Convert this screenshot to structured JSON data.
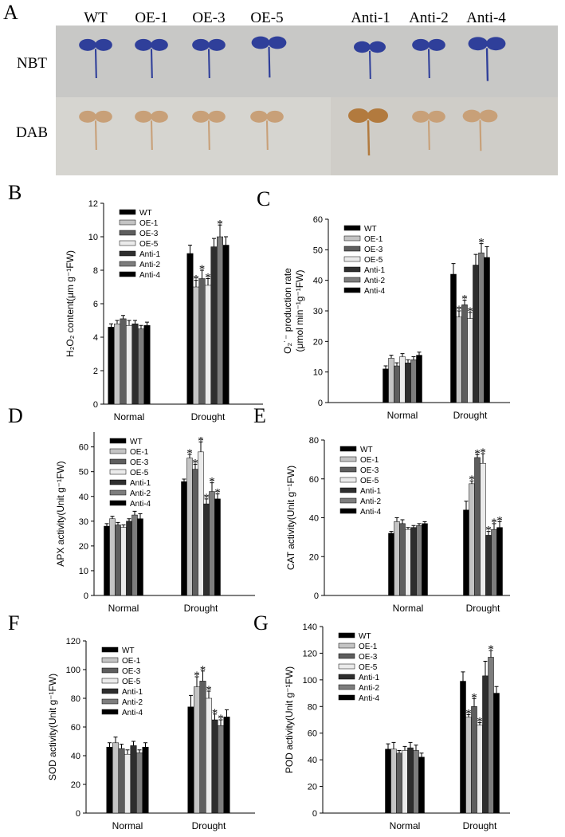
{
  "panel_a": {
    "letter": "A",
    "columns": [
      "WT",
      "OE-1",
      "OE-3",
      "OE-5",
      "Anti-1",
      "Anti-2",
      "Anti-4"
    ],
    "rows": [
      "NBT",
      "DAB"
    ]
  },
  "chart_data": [
    {
      "type": "bar",
      "letter": "B",
      "y_label": [
        "H₂O₂ content(μm g⁻¹FW)"
      ],
      "categories": [
        "Normal",
        "Drought"
      ],
      "ylim": [
        0,
        12
      ],
      "yticks": [
        0,
        2,
        4,
        6,
        8,
        10,
        12
      ],
      "series": [
        {
          "name": "WT",
          "color": "#000000",
          "values": [
            4.6,
            9.0
          ],
          "errors": [
            0.2,
            0.5
          ],
          "sig": [
            null,
            null
          ]
        },
        {
          "name": "OE-1",
          "color": "#c4c4c4",
          "values": [
            4.8,
            7.0
          ],
          "errors": [
            0.2,
            0.4
          ],
          "sig": [
            null,
            "*"
          ]
        },
        {
          "name": "OE-3",
          "color": "#5e5e5e",
          "values": [
            5.1,
            7.5
          ],
          "errors": [
            0.2,
            0.5
          ],
          "sig": [
            null,
            "*"
          ]
        },
        {
          "name": "OE-5",
          "color": "#ebebeb",
          "values": [
            4.7,
            7.1
          ],
          "errors": [
            0.3,
            0.4
          ],
          "sig": [
            null,
            "*"
          ]
        },
        {
          "name": "Anti-1",
          "color": "#2e2e2e",
          "values": [
            4.8,
            9.4
          ],
          "errors": [
            0.2,
            0.5
          ],
          "sig": [
            null,
            null
          ]
        },
        {
          "name": "Anti-2",
          "color": "#7d7d7d",
          "values": [
            4.5,
            10.0
          ],
          "errors": [
            0.2,
            0.7
          ],
          "sig": [
            null,
            "*"
          ]
        },
        {
          "name": "Anti-4",
          "color": "#000000",
          "values": [
            4.7,
            9.5
          ],
          "errors": [
            0.2,
            0.5
          ],
          "sig": [
            null,
            null
          ]
        }
      ]
    },
    {
      "type": "bar",
      "letter": "C",
      "y_label": [
        "O₂˙⁻ production rate",
        "(μmol min⁻¹g⁻¹FW)"
      ],
      "categories": [
        "Normal",
        "Drought"
      ],
      "ylim": [
        0,
        60
      ],
      "yticks": [
        0,
        10,
        20,
        30,
        40,
        50,
        60
      ],
      "series": [
        {
          "name": "WT",
          "color": "#000000",
          "values": [
            11,
            42
          ],
          "errors": [
            1,
            3.5
          ],
          "sig": [
            null,
            null
          ]
        },
        {
          "name": "OE-1",
          "color": "#c4c4c4",
          "values": [
            14.5,
            28
          ],
          "errors": [
            1,
            2
          ],
          "sig": [
            null,
            "*"
          ]
        },
        {
          "name": "OE-3",
          "color": "#5e5e5e",
          "values": [
            12,
            32
          ],
          "errors": [
            1,
            1.5
          ],
          "sig": [
            null,
            "*"
          ]
        },
        {
          "name": "OE-5",
          "color": "#ebebeb",
          "values": [
            15,
            27.5
          ],
          "errors": [
            1,
            2
          ],
          "sig": [
            null,
            "*"
          ]
        },
        {
          "name": "Anti-1",
          "color": "#2e2e2e",
          "values": [
            13,
            45
          ],
          "errors": [
            1,
            3.5
          ],
          "sig": [
            null,
            null
          ]
        },
        {
          "name": "Anti-2",
          "color": "#7d7d7d",
          "values": [
            14,
            49
          ],
          "errors": [
            1,
            3
          ],
          "sig": [
            null,
            "*"
          ]
        },
        {
          "name": "Anti-4",
          "color": "#000000",
          "values": [
            15.5,
            47.5
          ],
          "errors": [
            1,
            3.5
          ],
          "sig": [
            null,
            null
          ]
        }
      ]
    },
    {
      "type": "bar",
      "letter": "D",
      "y_label": [
        "APX activity(Unit g⁻¹FW)"
      ],
      "categories": [
        "Normal",
        "Drought"
      ],
      "ylim": [
        0,
        66
      ],
      "yticks": [
        0,
        10,
        20,
        30,
        40,
        50,
        60
      ],
      "series": [
        {
          "name": "WT",
          "color": "#000000",
          "values": [
            28,
            46
          ],
          "errors": [
            1,
            1
          ],
          "sig": [
            null,
            null
          ]
        },
        {
          "name": "OE-1",
          "color": "#c4c4c4",
          "values": [
            31,
            55.5
          ],
          "errors": [
            1,
            1.5
          ],
          "sig": [
            null,
            "*"
          ]
        },
        {
          "name": "OE-3",
          "color": "#5e5e5e",
          "values": [
            28.5,
            51
          ],
          "errors": [
            1,
            2
          ],
          "sig": [
            null,
            "*"
          ]
        },
        {
          "name": "OE-5",
          "color": "#ebebeb",
          "values": [
            27.5,
            58
          ],
          "errors": [
            1,
            4
          ],
          "sig": [
            null,
            "*"
          ]
        },
        {
          "name": "Anti-1",
          "color": "#2e2e2e",
          "values": [
            30,
            37
          ],
          "errors": [
            1,
            2
          ],
          "sig": [
            null,
            "*"
          ]
        },
        {
          "name": "Anti-2",
          "color": "#7d7d7d",
          "values": [
            32.5,
            42
          ],
          "errors": [
            1.5,
            3.5
          ],
          "sig": [
            null,
            "*"
          ]
        },
        {
          "name": "Anti-4",
          "color": "#000000",
          "values": [
            31,
            39
          ],
          "errors": [
            2,
            2
          ],
          "sig": [
            null,
            "*"
          ]
        }
      ]
    },
    {
      "type": "bar",
      "letter": "E",
      "y_label": [
        "CAT activity(Unit g⁻¹FW)"
      ],
      "categories": [
        "Normal",
        "Drought"
      ],
      "ylim": [
        0,
        80
      ],
      "yticks": [
        0,
        20,
        40,
        60,
        80
      ],
      "series": [
        {
          "name": "WT",
          "color": "#000000",
          "values": [
            32,
            44
          ],
          "errors": [
            1,
            4.5
          ],
          "sig": [
            null,
            null
          ]
        },
        {
          "name": "OE-1",
          "color": "#c4c4c4",
          "values": [
            38,
            57.5
          ],
          "errors": [
            2,
            1.5
          ],
          "sig": [
            null,
            "*"
          ]
        },
        {
          "name": "OE-3",
          "color": "#5e5e5e",
          "values": [
            37,
            71
          ],
          "errors": [
            2,
            1.5
          ],
          "sig": [
            null,
            "*"
          ]
        },
        {
          "name": "OE-5",
          "color": "#ebebeb",
          "values": [
            34,
            68
          ],
          "errors": [
            1,
            5
          ],
          "sig": [
            null,
            "*"
          ]
        },
        {
          "name": "Anti-1",
          "color": "#2e2e2e",
          "values": [
            35,
            31
          ],
          "errors": [
            1,
            2
          ],
          "sig": [
            null,
            "*"
          ]
        },
        {
          "name": "Anti-2",
          "color": "#7d7d7d",
          "values": [
            36,
            34
          ],
          "errors": [
            1,
            3
          ],
          "sig": [
            null,
            "*"
          ]
        },
        {
          "name": "Anti-4",
          "color": "#000000",
          "values": [
            37,
            35
          ],
          "errors": [
            1,
            3
          ],
          "sig": [
            null,
            "*"
          ]
        }
      ]
    },
    {
      "type": "bar",
      "letter": "F",
      "y_label": [
        "SOD activity(Unit g⁻¹FW)"
      ],
      "categories": [
        "Normal",
        "Drought"
      ],
      "ylim": [
        0,
        120
      ],
      "yticks": [
        0,
        20,
        40,
        60,
        80,
        100,
        120
      ],
      "series": [
        {
          "name": "WT",
          "color": "#000000",
          "values": [
            46,
            74
          ],
          "errors": [
            3,
            8
          ],
          "sig": [
            null,
            null
          ]
        },
        {
          "name": "OE-1",
          "color": "#c4c4c4",
          "values": [
            49,
            88
          ],
          "errors": [
            4,
            7
          ],
          "sig": [
            null,
            "*"
          ]
        },
        {
          "name": "OE-3",
          "color": "#5e5e5e",
          "values": [
            45,
            92
          ],
          "errors": [
            3,
            7
          ],
          "sig": [
            null,
            "*"
          ]
        },
        {
          "name": "OE-5",
          "color": "#ebebeb",
          "values": [
            41,
            80
          ],
          "errors": [
            3,
            5
          ],
          "sig": [
            null,
            "*"
          ]
        },
        {
          "name": "Anti-1",
          "color": "#2e2e2e",
          "values": [
            47,
            65
          ],
          "errors": [
            3,
            4
          ],
          "sig": [
            null,
            "*"
          ]
        },
        {
          "name": "Anti-2",
          "color": "#7d7d7d",
          "values": [
            42,
            61
          ],
          "errors": [
            2,
            4
          ],
          "sig": [
            null,
            "*"
          ]
        },
        {
          "name": "Anti-4",
          "color": "#000000",
          "values": [
            46,
            67
          ],
          "errors": [
            3,
            5
          ],
          "sig": [
            null,
            null
          ]
        }
      ]
    },
    {
      "type": "bar",
      "letter": "G",
      "y_label": [
        "POD activity(Unit g⁻¹FW)"
      ],
      "categories": [
        "Normal",
        "Drought"
      ],
      "ylim": [
        0,
        140
      ],
      "yticks": [
        0,
        20,
        40,
        60,
        80,
        100,
        120,
        140
      ],
      "series": [
        {
          "name": "WT",
          "color": "#000000",
          "values": [
            48,
            99
          ],
          "errors": [
            4,
            7
          ],
          "sig": [
            null,
            null
          ]
        },
        {
          "name": "OE-1",
          "color": "#c4c4c4",
          "values": [
            48,
            72
          ],
          "errors": [
            5,
            2
          ],
          "sig": [
            null,
            "*"
          ]
        },
        {
          "name": "OE-3",
          "color": "#5e5e5e",
          "values": [
            45,
            80
          ],
          "errors": [
            2,
            6
          ],
          "sig": [
            null,
            "*"
          ]
        },
        {
          "name": "OE-5",
          "color": "#ebebeb",
          "values": [
            47,
            66
          ],
          "errors": [
            3,
            2
          ],
          "sig": [
            null,
            "*"
          ]
        },
        {
          "name": "Anti-1",
          "color": "#2e2e2e",
          "values": [
            49,
            103
          ],
          "errors": [
            4,
            11
          ],
          "sig": [
            null,
            null
          ]
        },
        {
          "name": "Anti-2",
          "color": "#7d7d7d",
          "values": [
            47,
            117
          ],
          "errors": [
            4,
            5
          ],
          "sig": [
            null,
            "*"
          ]
        },
        {
          "name": "Anti-4",
          "color": "#000000",
          "values": [
            42,
            90
          ],
          "errors": [
            3,
            5
          ],
          "sig": [
            null,
            null
          ]
        }
      ]
    }
  ]
}
